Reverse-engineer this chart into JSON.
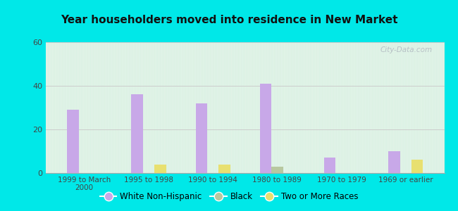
{
  "title": "Year householders moved into residence in New Market",
  "categories": [
    "1999 to March\n2000",
    "1995 to 1998",
    "1990 to 1994",
    "1980 to 1989",
    "1970 to 1979",
    "1969 or earlier"
  ],
  "white_non_hispanic": [
    29,
    36,
    32,
    41,
    7,
    10
  ],
  "black": [
    0,
    0,
    0,
    3,
    0,
    0
  ],
  "two_or_more_races": [
    0,
    4,
    4,
    0,
    0,
    6
  ],
  "bar_width": 0.18,
  "ylim": [
    0,
    60
  ],
  "yticks": [
    0,
    20,
    40,
    60
  ],
  "colors": {
    "white_non_hispanic": "#c8a8e8",
    "black": "#b8c8a0",
    "two_or_more_races": "#e8e070"
  },
  "legend_labels": [
    "White Non-Hispanic",
    "Black",
    "Two or More Races"
  ],
  "bg_outer": "#00e8e8",
  "watermark": "City-Data.com",
  "bg_grad_top": "#e8f5ee",
  "bg_grad_bottom": "#d0eedc"
}
